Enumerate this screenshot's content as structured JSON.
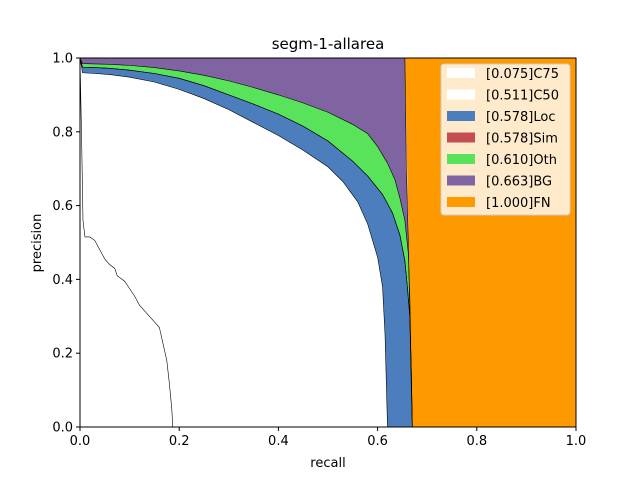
{
  "chart_data": {
    "type": "area",
    "title": "segm-1-allarea",
    "xlabel": "recall",
    "ylabel": "precision",
    "xlim": [
      0,
      1
    ],
    "ylim": [
      0,
      1
    ],
    "xticks": [
      "0.0",
      "0.2",
      "0.4",
      "0.6",
      "0.8",
      "1.0"
    ],
    "yticks": [
      "0.0",
      "0.2",
      "0.4",
      "0.6",
      "0.8",
      "1.0"
    ],
    "legend_position": "top-right",
    "series": [
      {
        "name": "[0.075]C75",
        "color": "#ffffff",
        "points": [
          [
            0,
            1.0
          ],
          [
            0.003,
            0.8
          ],
          [
            0.006,
            0.56
          ],
          [
            0.01,
            0.515
          ],
          [
            0.02,
            0.515
          ],
          [
            0.03,
            0.505
          ],
          [
            0.04,
            0.48
          ],
          [
            0.05,
            0.455
          ],
          [
            0.06,
            0.44
          ],
          [
            0.07,
            0.43
          ],
          [
            0.075,
            0.41
          ],
          [
            0.09,
            0.395
          ],
          [
            0.1,
            0.375
          ],
          [
            0.11,
            0.355
          ],
          [
            0.12,
            0.33
          ],
          [
            0.13,
            0.315
          ],
          [
            0.14,
            0.3
          ],
          [
            0.15,
            0.285
          ],
          [
            0.16,
            0.27
          ],
          [
            0.165,
            0.24
          ],
          [
            0.17,
            0.21
          ],
          [
            0.175,
            0.18
          ],
          [
            0.18,
            0.12
          ],
          [
            0.185,
            0.05
          ],
          [
            0.187,
            0.0
          ]
        ]
      },
      {
        "name": "[0.511]C50",
        "color": "#ffffff",
        "points": [
          [
            0,
            1.0
          ],
          [
            0.005,
            0.96
          ],
          [
            0.03,
            0.958
          ],
          [
            0.06,
            0.955
          ],
          [
            0.1,
            0.948
          ],
          [
            0.15,
            0.935
          ],
          [
            0.2,
            0.915
          ],
          [
            0.25,
            0.89
          ],
          [
            0.3,
            0.86
          ],
          [
            0.35,
            0.825
          ],
          [
            0.4,
            0.79
          ],
          [
            0.45,
            0.75
          ],
          [
            0.5,
            0.705
          ],
          [
            0.53,
            0.665
          ],
          [
            0.56,
            0.61
          ],
          [
            0.58,
            0.55
          ],
          [
            0.6,
            0.46
          ],
          [
            0.61,
            0.38
          ],
          [
            0.615,
            0.25
          ],
          [
            0.618,
            0.1
          ],
          [
            0.62,
            0.0
          ]
        ]
      },
      {
        "name": "[0.578]Loc",
        "color": "#4c7ebd",
        "points": [
          [
            0,
            1.0
          ],
          [
            0.005,
            0.975
          ],
          [
            0.03,
            0.974
          ],
          [
            0.06,
            0.972
          ],
          [
            0.1,
            0.967
          ],
          [
            0.15,
            0.958
          ],
          [
            0.2,
            0.945
          ],
          [
            0.25,
            0.925
          ],
          [
            0.3,
            0.9
          ],
          [
            0.35,
            0.875
          ],
          [
            0.4,
            0.848
          ],
          [
            0.45,
            0.815
          ],
          [
            0.5,
            0.775
          ],
          [
            0.55,
            0.72
          ],
          [
            0.58,
            0.68
          ],
          [
            0.61,
            0.63
          ],
          [
            0.63,
            0.58
          ],
          [
            0.645,
            0.52
          ],
          [
            0.655,
            0.45
          ],
          [
            0.66,
            0.38
          ],
          [
            0.665,
            0.3
          ],
          [
            0.668,
            0.15
          ],
          [
            0.67,
            0.0
          ]
        ]
      },
      {
        "name": "[0.578]Sim",
        "color": "#c44e52",
        "points": [
          [
            0,
            1.0
          ],
          [
            0.005,
            0.975
          ],
          [
            0.03,
            0.974
          ],
          [
            0.06,
            0.972
          ],
          [
            0.1,
            0.967
          ],
          [
            0.15,
            0.958
          ],
          [
            0.2,
            0.945
          ],
          [
            0.25,
            0.925
          ],
          [
            0.3,
            0.9
          ],
          [
            0.35,
            0.875
          ],
          [
            0.4,
            0.848
          ],
          [
            0.45,
            0.815
          ],
          [
            0.5,
            0.775
          ],
          [
            0.55,
            0.72
          ],
          [
            0.58,
            0.68
          ],
          [
            0.61,
            0.63
          ],
          [
            0.63,
            0.58
          ],
          [
            0.645,
            0.52
          ],
          [
            0.655,
            0.45
          ],
          [
            0.66,
            0.38
          ],
          [
            0.665,
            0.3
          ],
          [
            0.668,
            0.15
          ],
          [
            0.67,
            0.0
          ]
        ]
      },
      {
        "name": "[0.610]Oth",
        "color": "#59e35b",
        "points": [
          [
            0,
            1.0
          ],
          [
            0.005,
            0.985
          ],
          [
            0.03,
            0.984
          ],
          [
            0.06,
            0.983
          ],
          [
            0.1,
            0.98
          ],
          [
            0.15,
            0.974
          ],
          [
            0.2,
            0.965
          ],
          [
            0.25,
            0.953
          ],
          [
            0.3,
            0.938
          ],
          [
            0.35,
            0.92
          ],
          [
            0.4,
            0.9
          ],
          [
            0.45,
            0.878
          ],
          [
            0.5,
            0.853
          ],
          [
            0.55,
            0.82
          ],
          [
            0.58,
            0.795
          ],
          [
            0.6,
            0.76
          ],
          [
            0.62,
            0.715
          ],
          [
            0.635,
            0.67
          ],
          [
            0.645,
            0.62
          ],
          [
            0.655,
            0.56
          ],
          [
            0.662,
            0.47
          ],
          [
            0.665,
            0.35
          ],
          [
            0.667,
            0.2
          ],
          [
            0.67,
            0.0
          ]
        ]
      },
      {
        "name": "[0.663]BG",
        "color": "#8064a2",
        "points": [
          [
            0,
            1.0
          ],
          [
            0.655,
            1.0
          ],
          [
            0.658,
            0.7
          ],
          [
            0.662,
            0.5
          ],
          [
            0.665,
            0.3
          ],
          [
            0.668,
            0.1
          ],
          [
            0.67,
            0.0
          ]
        ]
      },
      {
        "name": "[1.000]FN",
        "color": "#ff9900",
        "points": [
          [
            0.655,
            1.0
          ],
          [
            1.0,
            1.0
          ],
          [
            1.0,
            0.0
          ],
          [
            0.67,
            0.0
          ]
        ]
      }
    ]
  }
}
